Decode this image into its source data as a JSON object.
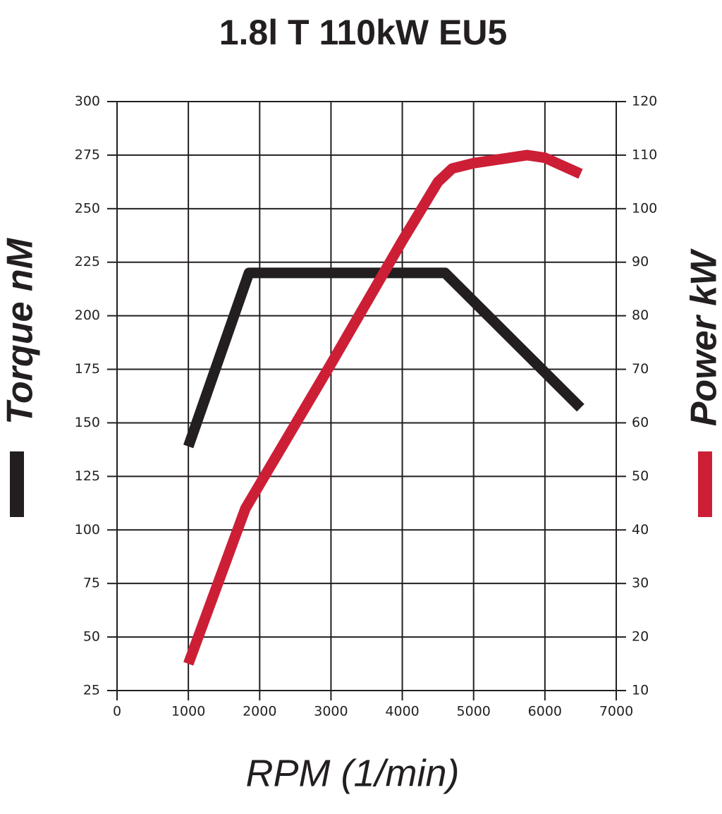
{
  "chart_data": {
    "type": "line",
    "title": "1.8l T 110kW EU5",
    "xlabel": "RPM (1/min)",
    "ylabel": "Torque nM",
    "y2label": "Power kW",
    "xlim": [
      0,
      7000
    ],
    "xticks": [
      0,
      1000,
      2000,
      3000,
      4000,
      5000,
      6000,
      7000
    ],
    "ylim": [
      25,
      300
    ],
    "yticks": [
      25,
      50,
      75,
      100,
      125,
      150,
      175,
      200,
      225,
      250,
      275,
      300
    ],
    "y2lim": [
      10,
      120
    ],
    "y2ticks": [
      10,
      20,
      30,
      40,
      50,
      60,
      70,
      80,
      90,
      100,
      110,
      120
    ],
    "grid": true,
    "series": [
      {
        "color": "#231f20",
        "x": [
          1000,
          1850,
          4600,
          6500
        ],
        "values": [
          139,
          220,
          220,
          157
        ]
      },
      {
        "color": "#cc1f36",
        "axis": "y2",
        "x": [
          1000,
          1800,
          3000,
          4000,
          4500,
          4700,
          5000,
          5750,
          6000,
          6500
        ],
        "values": [
          15,
          44,
          71,
          94,
          105,
          107.5,
          108.5,
          110,
          109.5,
          106.5
        ]
      }
    ]
  }
}
